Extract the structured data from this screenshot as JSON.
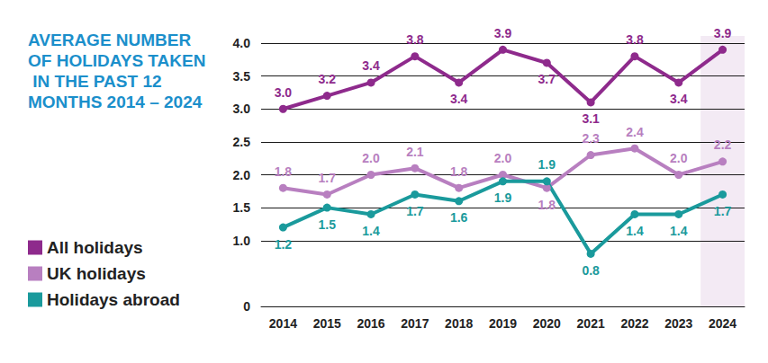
{
  "chart_data": {
    "type": "line",
    "title": "AVERAGE NUMBER OF HOLIDAYS TAKEN IN THE PAST 12 MONTHS 2014 – 2024",
    "categories": [
      "2014",
      "2015",
      "2016",
      "2017",
      "2018",
      "2019",
      "2020",
      "2021",
      "2022",
      "2023",
      "2024"
    ],
    "series": [
      {
        "name": "All holidays",
        "color": "#8e2a8c",
        "values": [
          3.0,
          3.2,
          3.4,
          3.8,
          3.4,
          3.9,
          3.7,
          3.1,
          3.8,
          3.4,
          3.9
        ],
        "value_labels": [
          "3.0",
          "3.2",
          "3.4",
          "3.8",
          "3.4",
          "3.9",
          "3.7",
          "3.1",
          "3.8",
          "3.4",
          "3.9"
        ]
      },
      {
        "name": "UK holidays",
        "color": "#b87fc0",
        "values": [
          1.8,
          1.7,
          2.0,
          2.1,
          1.8,
          2.0,
          1.8,
          2.3,
          2.4,
          2.0,
          2.2
        ],
        "value_labels": [
          "1.8",
          "1.7",
          "2.0",
          "2.1",
          "1.8",
          "2.0",
          "1.8",
          "2.3",
          "2.4",
          "2.0",
          "2.2"
        ]
      },
      {
        "name": "Holidays abroad",
        "color": "#1a9a9c",
        "values": [
          1.2,
          1.5,
          1.4,
          1.7,
          1.6,
          1.9,
          1.9,
          0.8,
          1.4,
          1.4,
          1.7
        ],
        "value_labels": [
          "1.2",
          "1.5",
          "1.4",
          "1.7",
          "1.6",
          "1.9",
          "1.9",
          "0.8",
          "1.4",
          "1.4",
          "1.7"
        ]
      }
    ],
    "ylim": [
      0,
      4
    ],
    "yticks": [
      0,
      {
        "value": 1,
        "label": "1.0"
      },
      1.5,
      {
        "value": 2,
        "label": "2.0"
      },
      2.5,
      {
        "value": 3,
        "label": "3.0"
      },
      3.5,
      {
        "value": 4,
        "label": "4.0"
      }
    ],
    "grid": true,
    "legend": "left",
    "data_labels": true,
    "marker": "circle"
  }
}
